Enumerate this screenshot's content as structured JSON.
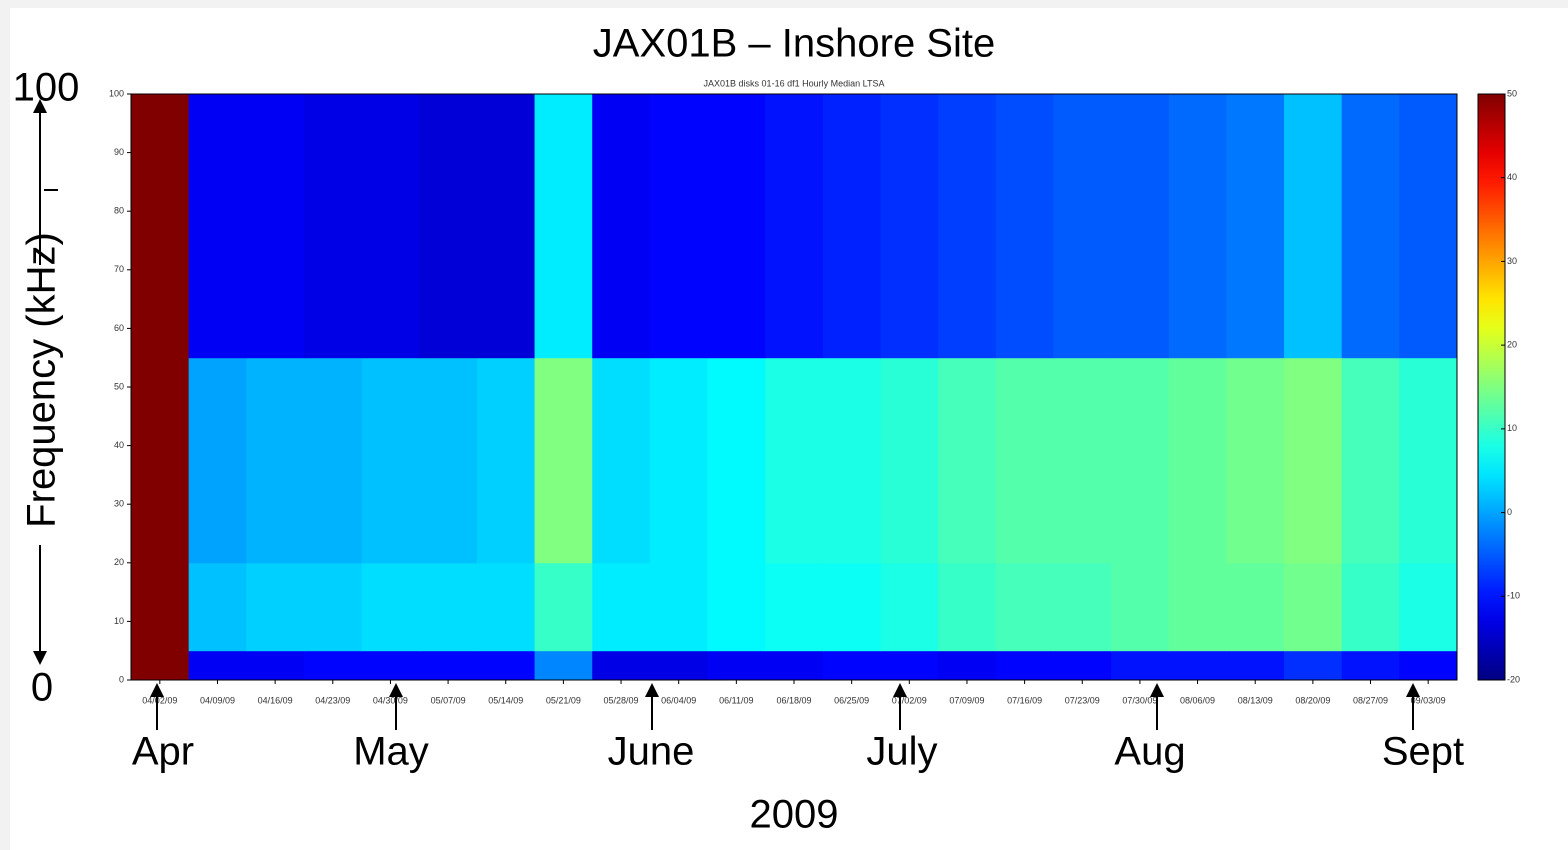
{
  "chart_data": {
    "type": "heatmap",
    "title": "JAX01B – Inshore Site",
    "subtitle": "JAX01B disks 01-16 df1 Hourly Median LTSA",
    "y_label": "Frequency (kHz)",
    "x_label": "2009",
    "categories": [
      "04/02/09",
      "04/09/09",
      "04/16/09",
      "04/23/09",
      "04/30/09",
      "05/07/09",
      "05/14/09",
      "05/21/09",
      "05/28/09",
      "06/04/09",
      "06/11/09",
      "06/18/09",
      "06/25/09",
      "07/02/09",
      "07/09/09",
      "07/16/09",
      "07/23/09",
      "07/30/09",
      "08/06/09",
      "08/13/09",
      "08/20/09",
      "08/27/09",
      "09/03/09"
    ],
    "y_edges": [
      0,
      5,
      20,
      55,
      100
    ],
    "z": [
      [
        50,
        -12,
        -12,
        -11,
        -11,
        -11,
        -11,
        -2,
        -13,
        -13,
        -12,
        -12,
        -11,
        -11,
        -12,
        -11,
        -11,
        -10,
        -10,
        -10,
        -8,
        -10,
        -11
      ],
      [
        50,
        2,
        3,
        3,
        4,
        4,
        4,
        10,
        5,
        5,
        6,
        7,
        7,
        8,
        10,
        11,
        11,
        12,
        13,
        13,
        14,
        10,
        8
      ],
      [
        50,
        0,
        1,
        1,
        2,
        2,
        3,
        15,
        4,
        5,
        6,
        8,
        8,
        9,
        11,
        12,
        12,
        12,
        13,
        14,
        15,
        11,
        9
      ],
      [
        50,
        -12,
        -12,
        -13,
        -13,
        -14,
        -14,
        5,
        -12,
        -11,
        -11,
        -10,
        -9,
        -8,
        -7,
        -6,
        -5,
        -5,
        -4,
        -3,
        2,
        -4,
        -5
      ]
    ],
    "ylim": [
      0,
      100
    ],
    "yticks": [
      0,
      10,
      20,
      30,
      40,
      50,
      60,
      70,
      80,
      90,
      100
    ],
    "clim": [
      -20,
      50
    ],
    "cticks": [
      -20,
      -10,
      0,
      10,
      20,
      30,
      40,
      50
    ],
    "colormap": "jet",
    "annotations": {
      "y_top": "100",
      "y_bottom": "0",
      "months": [
        "Apr",
        "May",
        "June",
        "July",
        "Aug",
        "Sept"
      ]
    }
  }
}
